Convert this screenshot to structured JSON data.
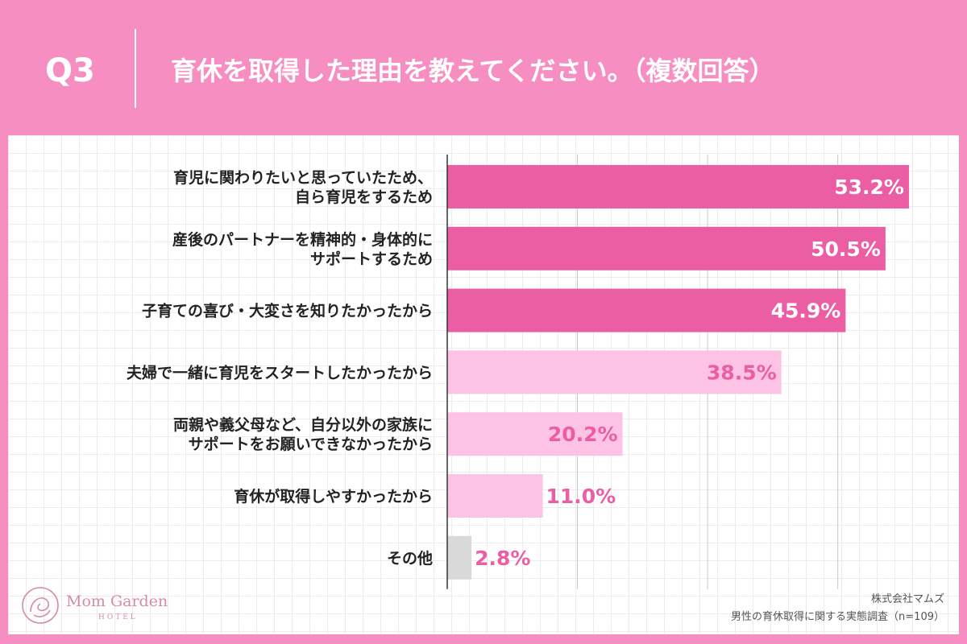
{
  "header": {
    "question_number": "Q3",
    "title": "育休を取得した理由を教えてください。（複数回答）"
  },
  "chart_data": {
    "type": "bar",
    "orientation": "horizontal",
    "categories": [
      [
        "育児に関わりたいと思っていたため、",
        "自ら育児をするため"
      ],
      [
        "産後のパートナーを精神的・身体的に",
        "サポートするため"
      ],
      [
        "子育ての喜び・大変さを知りたかったから"
      ],
      [
        "夫婦で一緒に育児をスタートしたかったから"
      ],
      [
        "両親や義父母など、自分以外の家族に",
        "サポートをお願いできなかったから"
      ],
      [
        "育休が取得しやすかったから"
      ],
      [
        "その他"
      ]
    ],
    "values": [
      53.2,
      50.5,
      45.9,
      38.5,
      20.2,
      11.0,
      2.8
    ],
    "value_labels": [
      "53.2%",
      "50.5%",
      "45.9%",
      "38.5%",
      "20.2%",
      "11.0%",
      "2.8%"
    ],
    "xlim": [
      0,
      60
    ],
    "bar_colors": [
      "#ec5ea4",
      "#ec5ea4",
      "#ec5ea4",
      "#fcc3e4",
      "#fcc3e4",
      "#fcc3e4",
      "#d9d9d9"
    ],
    "label_colors": [
      "#ffffff",
      "#ffffff",
      "#ffffff",
      "#ec5ea4",
      "#ec5ea4",
      "#ec5ea4",
      "#ec5ea4"
    ],
    "grid": true
  },
  "logo": {
    "name": "Mom Garden",
    "sub": "HOTEL"
  },
  "footer": {
    "company": "株式会社マムズ",
    "survey": "男性の育休取得に関する実態調査（n=109）"
  },
  "colors": {
    "background": "#f78ec1",
    "accent": "#ec5ea4",
    "light": "#fcc3e4",
    "other": "#d9d9d9"
  }
}
